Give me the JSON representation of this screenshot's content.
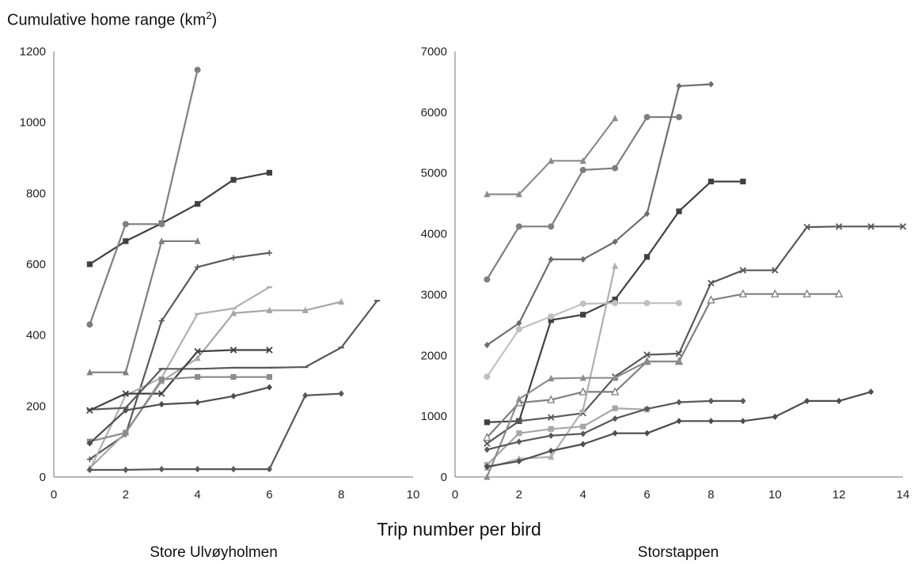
{
  "figure": {
    "ylabel_text": "Cumulative home range (km",
    "ylabel_sup": "2",
    "ylabel_close": ")",
    "xlabel": "Trip number per bird"
  },
  "chart_data": [
    {
      "type": "line",
      "title": "Store Ulvøyholmen",
      "xlabel": "Trip number per bird",
      "ylabel": "Cumulative home range (km2)",
      "xlim": [
        0,
        10
      ],
      "ylim": [
        0,
        1200
      ],
      "xticks": [
        0,
        2,
        4,
        6,
        8,
        10
      ],
      "yticks": [
        0,
        200,
        400,
        600,
        800,
        1000,
        1200
      ],
      "grid": false,
      "series": [
        {
          "color": "#404040",
          "marker": "square",
          "x": [
            1,
            2,
            3,
            4,
            5,
            6
          ],
          "y": [
            600,
            665,
            715,
            770,
            838,
            858
          ]
        },
        {
          "color": "#7f7f7f",
          "marker": "circle",
          "x": [
            1,
            2,
            3,
            4
          ],
          "y": [
            430,
            713,
            713,
            1148
          ]
        },
        {
          "color": "#7f7f7f",
          "marker": "triangle",
          "x": [
            1,
            2,
            3,
            4
          ],
          "y": [
            295,
            295,
            665,
            665
          ]
        },
        {
          "color": "#595959",
          "marker": "plus",
          "x": [
            1,
            2,
            3,
            4,
            5,
            6
          ],
          "y": [
            50,
            120,
            440,
            592,
            618,
            632
          ]
        },
        {
          "color": "#b0b0b0",
          "marker": "dash",
          "x": [
            1,
            2,
            3,
            4,
            5,
            6
          ],
          "y": [
            20,
            230,
            280,
            460,
            475,
            535
          ]
        },
        {
          "color": "#a6a6a6",
          "marker": "triangle",
          "x": [
            1,
            2,
            3,
            4,
            5,
            6,
            7,
            8
          ],
          "y": [
            25,
            125,
            270,
            335,
            462,
            470,
            470,
            494
          ]
        },
        {
          "color": "#595959",
          "marker": "dash",
          "x": [
            1,
            2,
            3,
            4,
            5,
            6,
            7,
            8,
            9
          ],
          "y": [
            190,
            195,
            305,
            305,
            308,
            308,
            310,
            365,
            497
          ]
        },
        {
          "color": "#404040",
          "marker": "x",
          "x": [
            1,
            2,
            3,
            4,
            5,
            6
          ],
          "y": [
            188,
            235,
            235,
            354,
            358,
            358
          ]
        },
        {
          "color": "#8c8c8c",
          "marker": "square",
          "x": [
            1,
            2,
            3,
            4,
            5,
            6
          ],
          "y": [
            100,
            125,
            275,
            282,
            282,
            282
          ]
        },
        {
          "color": "#4d4d4d",
          "marker": "diamond",
          "x": [
            1,
            2,
            3,
            4,
            5,
            6
          ],
          "y": [
            95,
            188,
            205,
            210,
            228,
            253
          ]
        },
        {
          "color": "#595959",
          "marker": "diamond",
          "x": [
            1,
            2,
            3,
            4,
            5,
            6,
            7,
            8
          ],
          "y": [
            20,
            20,
            22,
            22,
            22,
            22,
            230,
            235
          ]
        }
      ]
    },
    {
      "type": "line",
      "title": "Storstappen",
      "xlabel": "Trip number per bird",
      "ylabel": "Cumulative home range (km2)",
      "xlim": [
        0,
        14
      ],
      "ylim": [
        0,
        7000
      ],
      "xticks": [
        0,
        2,
        4,
        6,
        8,
        10,
        12,
        14
      ],
      "yticks": [
        0,
        1000,
        2000,
        3000,
        4000,
        5000,
        6000,
        7000
      ],
      "grid": false,
      "series": [
        {
          "color": "#8c8c8c",
          "marker": "triangle",
          "x": [
            1,
            2,
            3,
            4,
            5
          ],
          "y": [
            4650,
            4650,
            5200,
            5200,
            5900
          ]
        },
        {
          "color": "#7f7f7f",
          "marker": "circle",
          "x": [
            1,
            2,
            3,
            4,
            5,
            6,
            7
          ],
          "y": [
            3250,
            4120,
            4120,
            5050,
            5080,
            5920,
            5920
          ]
        },
        {
          "color": "#6e6e6e",
          "marker": "diamond",
          "x": [
            1,
            2,
            3,
            4,
            5,
            6,
            7,
            8
          ],
          "y": [
            2170,
            2530,
            3580,
            3580,
            3870,
            4330,
            6430,
            6460
          ]
        },
        {
          "color": "#404040",
          "marker": "square",
          "x": [
            1,
            2,
            3,
            4,
            5,
            6,
            7,
            8,
            9
          ],
          "y": [
            900,
            920,
            2580,
            2670,
            2920,
            3620,
            4370,
            4860,
            4860
          ]
        },
        {
          "color": "#595959",
          "marker": "x",
          "x": [
            1,
            2,
            3,
            4,
            5,
            6,
            7,
            8,
            9,
            10,
            11,
            12,
            13,
            14
          ],
          "y": [
            550,
            920,
            980,
            1050,
            1650,
            2010,
            2030,
            3190,
            3400,
            3400,
            4110,
            4120,
            4120,
            4120
          ]
        },
        {
          "color": "#c0c0c0",
          "marker": "circle",
          "x": [
            1,
            2,
            3,
            4,
            5,
            6,
            7
          ],
          "y": [
            1650,
            2430,
            2640,
            2850,
            2860,
            2860,
            2860
          ]
        },
        {
          "color": "#7f7f7f",
          "marker": "open-triangle",
          "x": [
            1,
            2,
            3,
            4,
            5,
            6,
            7,
            8,
            9,
            10,
            11,
            12
          ],
          "y": [
            650,
            1220,
            1270,
            1400,
            1400,
            1900,
            1900,
            2910,
            3010,
            3010,
            3010,
            3010
          ]
        },
        {
          "color": "#b0b0b0",
          "marker": "triangle",
          "x": [
            1,
            2,
            3,
            4,
            5
          ],
          "y": [
            150,
            300,
            330,
            1100,
            3470
          ]
        },
        {
          "color": "#a6a6a6",
          "marker": "square",
          "x": [
            1,
            2,
            3,
            4,
            5,
            6
          ],
          "y": [
            200,
            720,
            790,
            830,
            1130,
            1110
          ]
        },
        {
          "color": "#8c8c8c",
          "marker": "triangle",
          "x": [
            1,
            2,
            3,
            4,
            5,
            6,
            7
          ],
          "y": [
            0,
            1280,
            1620,
            1630,
            1630,
            1900,
            1900
          ]
        },
        {
          "color": "#595959",
          "marker": "diamond",
          "x": [
            1,
            2,
            3,
            4,
            5,
            6,
            7,
            8,
            9
          ],
          "y": [
            450,
            580,
            680,
            710,
            960,
            1120,
            1230,
            1250,
            1250
          ]
        },
        {
          "color": "#4d4d4d",
          "marker": "diamond",
          "x": [
            1,
            2,
            3,
            4,
            5,
            6,
            7,
            8,
            9,
            10,
            11,
            12,
            13
          ],
          "y": [
            170,
            260,
            430,
            540,
            720,
            720,
            920,
            920,
            920,
            990,
            1250,
            1250,
            1400
          ]
        }
      ]
    }
  ]
}
